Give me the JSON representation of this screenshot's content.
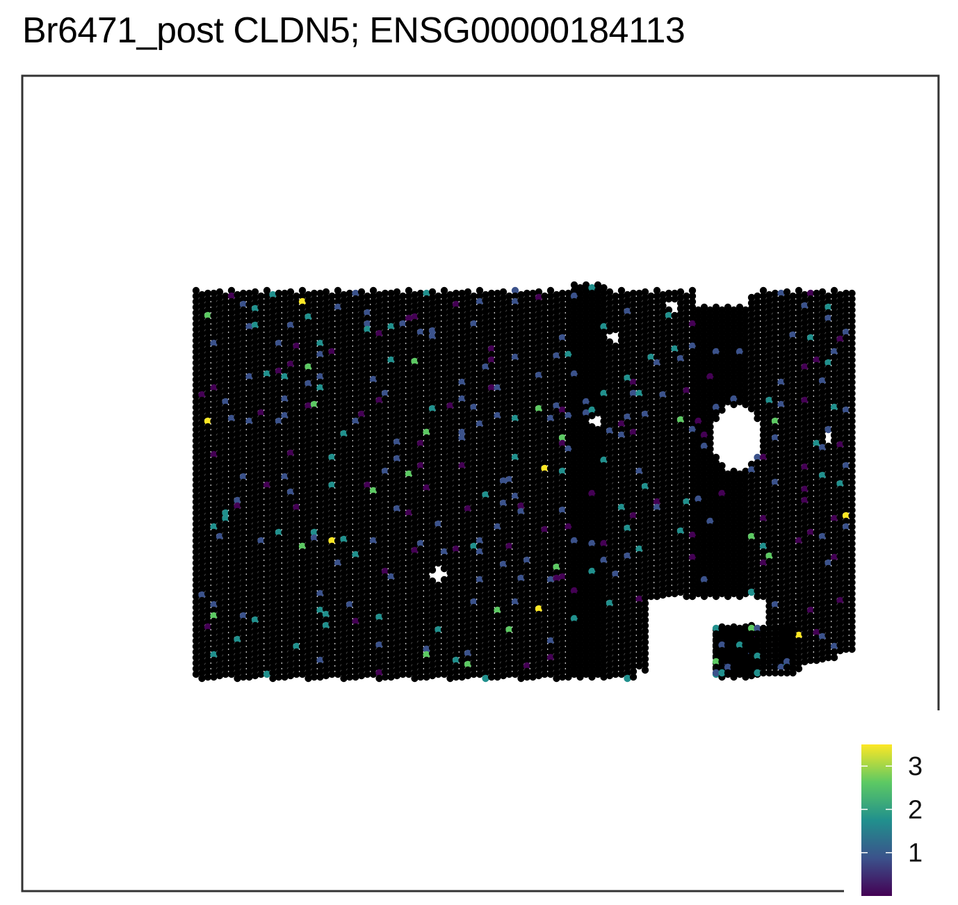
{
  "title": "Br6471_post CLDN5; ENSG00000184113",
  "chart_data": {
    "type": "scatter",
    "description_style": "spatial spot map",
    "background_spot_color": "#000000",
    "legend": {
      "placement": "bottom-right",
      "type": "colorbar",
      "colormap": "viridis",
      "range": [
        0,
        3.5
      ],
      "ticks": [
        1,
        2,
        3
      ],
      "tick_labels": [
        "1",
        "2",
        "3"
      ],
      "colors": [
        "#440154",
        "#3b528b",
        "#21908d",
        "#5dc963",
        "#fde725"
      ]
    },
    "grid": false
  }
}
